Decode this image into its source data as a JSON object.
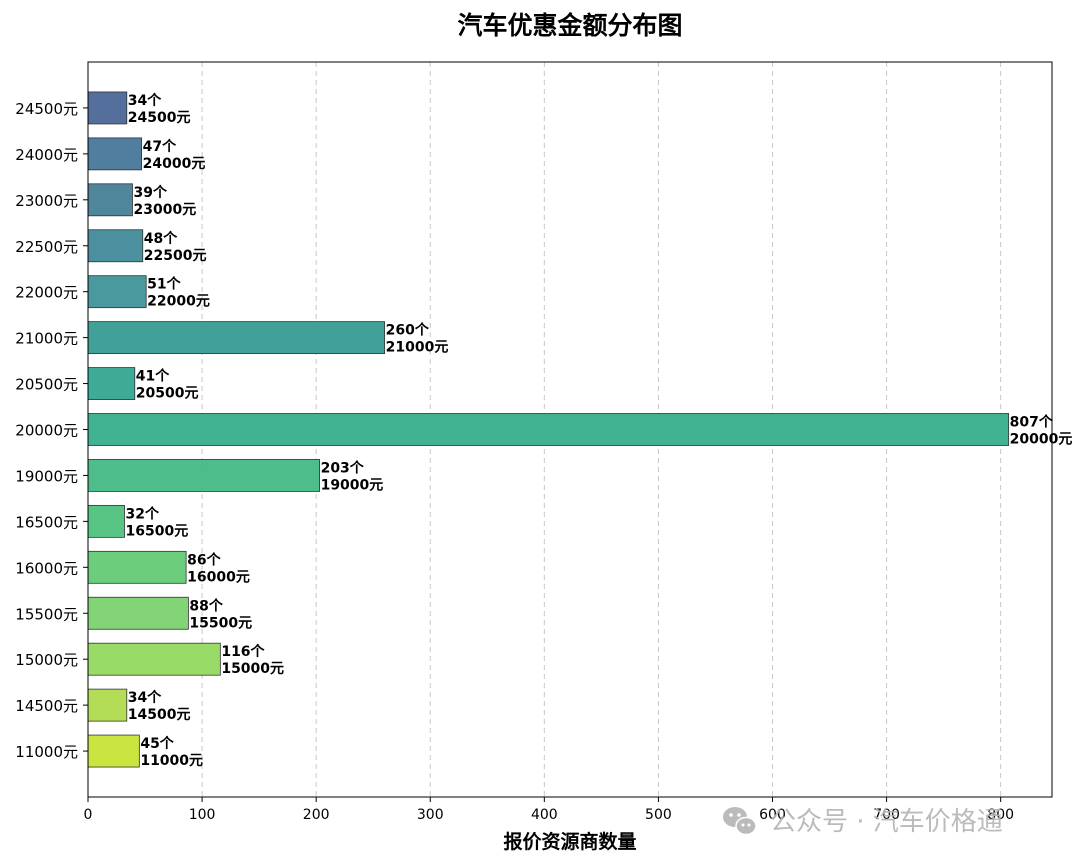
{
  "chart_data": {
    "type": "bar",
    "orientation": "horizontal",
    "title": "汽车优惠金额分布图",
    "xlabel": "报价资源商数量",
    "ylabel": "",
    "xlim": [
      0,
      845
    ],
    "xticks": [
      0,
      100,
      200,
      300,
      400,
      500,
      600,
      700,
      800
    ],
    "grid": "vertical dashed",
    "categories": [
      "24500元",
      "24000元",
      "23000元",
      "22500元",
      "22000元",
      "21000元",
      "20500元",
      "20000元",
      "19000元",
      "16500元",
      "16000元",
      "15500元",
      "15000元",
      "14500元",
      "11000元"
    ],
    "values": [
      34,
      47,
      39,
      48,
      51,
      260,
      41,
      807,
      203,
      32,
      86,
      88,
      116,
      34,
      45
    ],
    "data_labels": [
      [
        "34个",
        "24500元"
      ],
      [
        "47个",
        "24000元"
      ],
      [
        "39个",
        "23000元"
      ],
      [
        "48个",
        "22500元"
      ],
      [
        "51个",
        "22000元"
      ],
      [
        "260个",
        "21000元"
      ],
      [
        "41个",
        "20500元"
      ],
      [
        "807个",
        "20000元"
      ],
      [
        "203个",
        "19000元"
      ],
      [
        "32个",
        "16500元"
      ],
      [
        "86个",
        "16000元"
      ],
      [
        "88个",
        "15500元"
      ],
      [
        "116个",
        "15000元"
      ],
      [
        "34个",
        "14500元"
      ],
      [
        "45个",
        "11000元"
      ]
    ],
    "colors": [
      "#4f6a9a",
      "#4b7a9c",
      "#4a8299",
      "#468c9c",
      "#43969b",
      "#3b9e96",
      "#37a892",
      "#3bb08d",
      "#47bb88",
      "#53c381",
      "#67cb78",
      "#7ed372",
      "#96da62",
      "#b1dc51",
      "#c8e33a"
    ]
  },
  "watermark": {
    "icon": "wechat-icon",
    "text": "公众号 · 汽车价格通"
  }
}
